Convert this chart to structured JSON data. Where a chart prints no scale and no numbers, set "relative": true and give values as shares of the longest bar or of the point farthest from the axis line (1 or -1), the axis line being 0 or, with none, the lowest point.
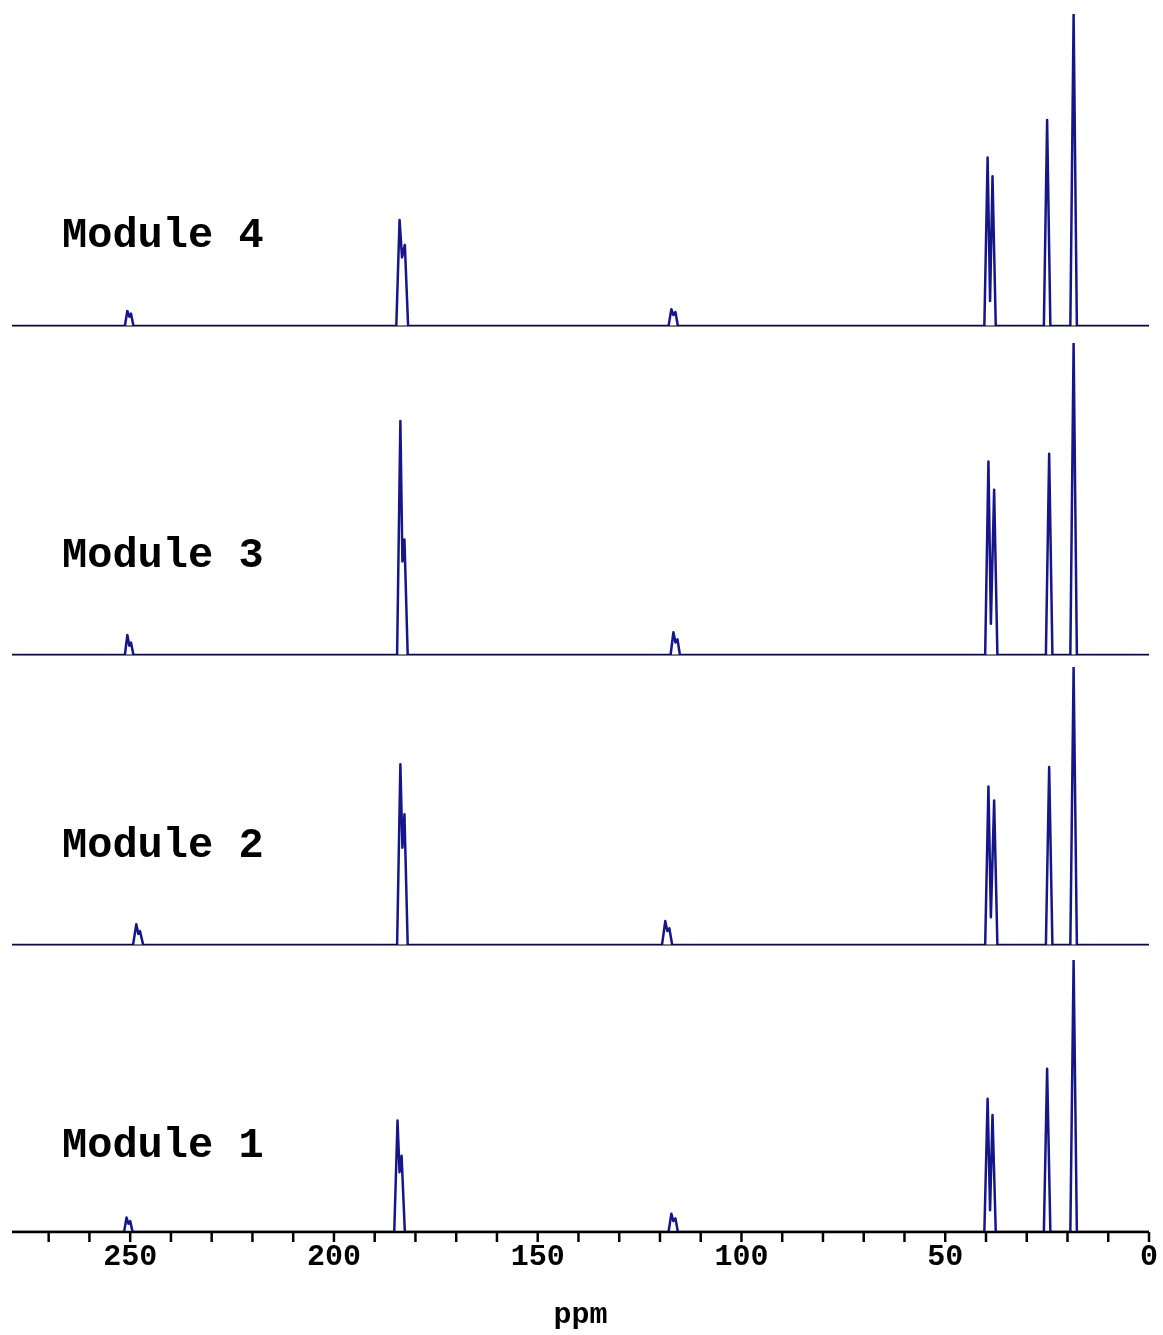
{
  "chart_data": [
    {
      "type": "line",
      "relative": true,
      "xlim": [
        279,
        0
      ],
      "tick_labels": false,
      "line_style": "solid",
      "marker": "none",
      "x": [
        279,
        251.3,
        250.7,
        250.2,
        249.8,
        249.2,
        184.7,
        183.9,
        183.3,
        182.6,
        181.8,
        117.9,
        117.2,
        116.7,
        116.2,
        115.6,
        40.4,
        39.6,
        39.0,
        38.4,
        37.6,
        25.8,
        25.0,
        24.2,
        19.3,
        18.5,
        17.7,
        0
      ],
      "series": [
        {
          "name": "Module 4",
          "color": "#16168a",
          "values": [
            0,
            0,
            0.048,
            0.03,
            0.04,
            0,
            0,
            0.34,
            0.22,
            0.26,
            0,
            0,
            0.054,
            0.035,
            0.045,
            0,
            0,
            0.54,
            0.08,
            0.48,
            0,
            0,
            0.66,
            0,
            0,
            1,
            0,
            0
          ]
        }
      ]
    },
    {
      "type": "line",
      "relative": true,
      "xlim": [
        279,
        0
      ],
      "tick_labels": false,
      "line_style": "solid",
      "marker": "none",
      "x": [
        279,
        251.3,
        250.7,
        250.2,
        249.8,
        249.2,
        184.5,
        183.7,
        183.2,
        182.7,
        181.9,
        117.4,
        116.7,
        116.2,
        115.7,
        115.1,
        40.2,
        39.4,
        38.8,
        38.0,
        37.2,
        25.3,
        24.5,
        23.7,
        19.3,
        18.5,
        17.7,
        0
      ],
      "series": [
        {
          "name": "Module 3",
          "color": "#16168a",
          "values": [
            0,
            0,
            0.064,
            0.03,
            0.04,
            0,
            0,
            0.75,
            0.3,
            0.37,
            0,
            0,
            0.073,
            0.04,
            0.05,
            0,
            0,
            0.62,
            0.1,
            0.53,
            0,
            0,
            0.645,
            0,
            0,
            1,
            0,
            0
          ]
        }
      ]
    },
    {
      "type": "line",
      "relative": true,
      "xlim": [
        279,
        0
      ],
      "tick_labels": false,
      "line_style": "solid",
      "marker": "none",
      "x": [
        279,
        249.3,
        248.5,
        248.0,
        247.6,
        246.8,
        184.5,
        183.7,
        183.2,
        182.7,
        181.9,
        119.5,
        118.7,
        118.2,
        117.7,
        117.0,
        40.2,
        39.4,
        38.8,
        38.0,
        37.2,
        25.3,
        24.5,
        23.7,
        19.3,
        18.5,
        17.7,
        0
      ],
      "series": [
        {
          "name": "Module 2",
          "color": "#16168a",
          "values": [
            0,
            0,
            0.075,
            0.04,
            0.05,
            0,
            0,
            0.65,
            0.35,
            0.47,
            0,
            0,
            0.086,
            0.05,
            0.06,
            0,
            0,
            0.57,
            0.1,
            0.52,
            0,
            0,
            0.64,
            0,
            0,
            1,
            0,
            0
          ]
        }
      ]
    },
    {
      "type": "line",
      "relative": true,
      "xlim": [
        279,
        0
      ],
      "tick_labels": "x",
      "line_style": "solid",
      "marker": "none",
      "xlabel": "ppm",
      "x": [
        279,
        251.5,
        250.9,
        250.4,
        250.0,
        249.4,
        185.2,
        184.4,
        183.9,
        183.4,
        182.6,
        117.9,
        117.2,
        116.7,
        116.2,
        115.6,
        40.4,
        39.6,
        39.0,
        38.4,
        37.6,
        25.8,
        25.0,
        24.2,
        19.3,
        18.5,
        17.7,
        0
      ],
      "xticks": [
        {
          "value": 270,
          "label": null
        },
        {
          "value": 260,
          "label": null
        },
        250,
        {
          "value": 240,
          "label": null
        },
        {
          "value": 230,
          "label": null
        },
        {
          "value": 220,
          "label": null
        },
        {
          "value": 210,
          "label": null
        },
        200,
        {
          "value": 190,
          "label": null
        },
        {
          "value": 180,
          "label": null
        },
        {
          "value": 170,
          "label": null
        },
        {
          "value": 160,
          "label": null
        },
        150,
        {
          "value": 140,
          "label": null
        },
        {
          "value": 130,
          "label": null
        },
        {
          "value": 120,
          "label": null
        },
        {
          "value": 110,
          "label": null
        },
        100,
        {
          "value": 90,
          "label": null
        },
        {
          "value": 80,
          "label": null
        },
        {
          "value": 70,
          "label": null
        },
        {
          "value": 60,
          "label": null
        },
        50,
        {
          "value": 40,
          "label": null
        },
        {
          "value": 30,
          "label": null
        },
        {
          "value": 20,
          "label": null
        },
        {
          "value": 10,
          "label": null
        },
        0
      ],
      "series": [
        {
          "name": "Module 1",
          "color": "#16168a",
          "values": [
            0,
            0,
            0.053,
            0.03,
            0.04,
            0,
            0,
            0.41,
            0.22,
            0.28,
            0,
            0,
            0.067,
            0.04,
            0.05,
            0,
            0,
            0.49,
            0.08,
            0.43,
            0,
            0,
            0.6,
            0,
            0,
            1,
            0,
            0
          ]
        }
      ]
    }
  ]
}
